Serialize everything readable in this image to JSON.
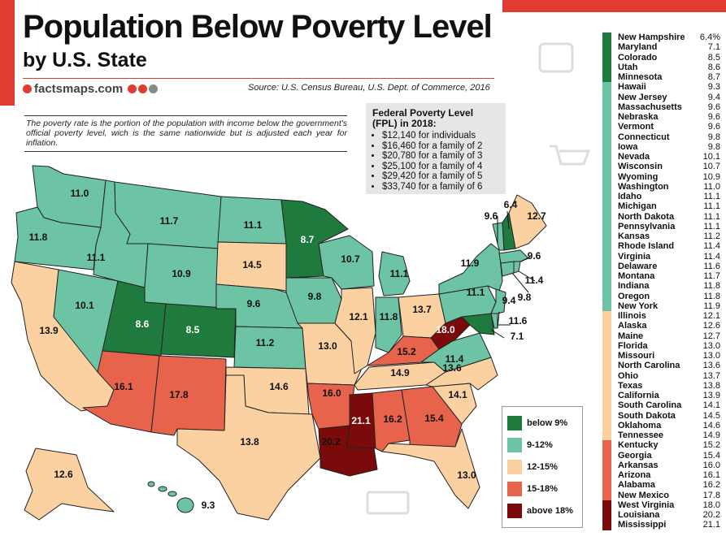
{
  "header": {
    "title": "Population Below Poverty Level",
    "subtitle": "by U.S. State",
    "brand": "factsmaps.com",
    "source": "Source: U.S. Census Bureau, U.S. Dept. of Commerce, 2016",
    "note": "The poverty rate is the portion of the population with income below the government's official poverty level, wich is the same nationwide but is adjusted each year for inflation."
  },
  "fpl": {
    "title": "Federal Poverty Level (FPL) in 2018:",
    "items": [
      "$12,140 for individuals",
      "$16,460 for a family of 2",
      "$20,780 for a family of 3",
      "$25,100 for a family of 4",
      "$29,420 for a family of 5",
      "$33,740 for a family of 6"
    ]
  },
  "colors": {
    "below9": "#1f7a3e",
    "c9to12": "#6cc4a4",
    "c12to15": "#fbd1a2",
    "c15to18": "#e8634c",
    "above18": "#7b0a0a"
  },
  "legend": [
    {
      "label": "below 9%",
      "color": "#1f7a3e"
    },
    {
      "label": "9-12%",
      "color": "#6cc4a4"
    },
    {
      "label": "12-15%",
      "color": "#fbd1a2"
    },
    {
      "label": "15-18%",
      "color": "#e8634c"
    },
    {
      "label": "above 18%",
      "color": "#7b0a0a"
    }
  ],
  "states": [
    {
      "name": "New Hampshire",
      "value": "6.4%"
    },
    {
      "name": "Maryland",
      "value": "7.1"
    },
    {
      "name": "Colorado",
      "value": "8.5"
    },
    {
      "name": "Utah",
      "value": "8.6"
    },
    {
      "name": "Minnesota",
      "value": "8.7"
    },
    {
      "name": "Hawaii",
      "value": "9.3"
    },
    {
      "name": "New Jersey",
      "value": "9.4"
    },
    {
      "name": "Massachusetts",
      "value": "9.6"
    },
    {
      "name": "Nebraska",
      "value": "9.6"
    },
    {
      "name": "Vermont",
      "value": "9.6"
    },
    {
      "name": "Connecticut",
      "value": "9.8"
    },
    {
      "name": "Iowa",
      "value": "9.8"
    },
    {
      "name": "Nevada",
      "value": "10.1"
    },
    {
      "name": "Wisconsin",
      "value": "10.7"
    },
    {
      "name": "Wyoming",
      "value": "10.9"
    },
    {
      "name": "Washington",
      "value": "11.0"
    },
    {
      "name": "Idaho",
      "value": "11.1"
    },
    {
      "name": "Michigan",
      "value": "11.1"
    },
    {
      "name": "North Dakota",
      "value": "11.1"
    },
    {
      "name": "Pennsylvania",
      "value": "11.1"
    },
    {
      "name": "Kansas",
      "value": "11.2"
    },
    {
      "name": "Rhode Island",
      "value": "11.4"
    },
    {
      "name": "Virginia",
      "value": "11.4"
    },
    {
      "name": "Delaware",
      "value": "11.6"
    },
    {
      "name": "Montana",
      "value": "11.7"
    },
    {
      "name": "Indiana",
      "value": "11.8"
    },
    {
      "name": "Oregon",
      "value": "11.8"
    },
    {
      "name": "New York",
      "value": "11.9"
    },
    {
      "name": "Illinois",
      "value": "12.1"
    },
    {
      "name": "Alaska",
      "value": "12.6"
    },
    {
      "name": "Maine",
      "value": "12.7"
    },
    {
      "name": "Florida",
      "value": "13.0"
    },
    {
      "name": "Missouri",
      "value": "13.0"
    },
    {
      "name": "North Carolina",
      "value": "13.6"
    },
    {
      "name": "Ohio",
      "value": "13.7"
    },
    {
      "name": "Texas",
      "value": "13.8"
    },
    {
      "name": "California",
      "value": "13.9"
    },
    {
      "name": "South Carolina",
      "value": "14.1"
    },
    {
      "name": "South Dakota",
      "value": "14.5"
    },
    {
      "name": "Oklahoma",
      "value": "14.6"
    },
    {
      "name": "Tennessee",
      "value": "14.9"
    },
    {
      "name": "Kentucky",
      "value": "15.2"
    },
    {
      "name": "Georgia",
      "value": "15.4"
    },
    {
      "name": "Arkansas",
      "value": "16.0"
    },
    {
      "name": "Arizona",
      "value": "16.1"
    },
    {
      "name": "Alabama",
      "value": "16.2"
    },
    {
      "name": "New Mexico",
      "value": "17.8"
    },
    {
      "name": "West Virginia",
      "value": "18.0"
    },
    {
      "name": "Louisiana",
      "value": "20.2"
    },
    {
      "name": "Mississippi",
      "value": "21.1"
    }
  ],
  "map_labels": [
    "11.0",
    "11.8",
    "11.1",
    "11.7",
    "10.9",
    "8.6",
    "8.5",
    "10.1",
    "13.9",
    "16.1",
    "17.8",
    "11.1",
    "14.5",
    "9.6",
    "11.2",
    "14.6",
    "13.8",
    "8.7",
    "9.8",
    "13.0",
    "16.0",
    "20.2",
    "10.7",
    "12.1",
    "11.1",
    "11.8",
    "13.7",
    "15.2",
    "14.9",
    "21.1",
    "16.2",
    "15.4",
    "13.6",
    "14.1",
    "13.0",
    "18.0",
    "11.4",
    "11.1",
    "11.9",
    "9.6",
    "6.4",
    "12.7",
    "9.6",
    "11.4",
    "9.8",
    "9.4",
    "11.6",
    "7.1",
    "12.6",
    "9.3"
  ]
}
